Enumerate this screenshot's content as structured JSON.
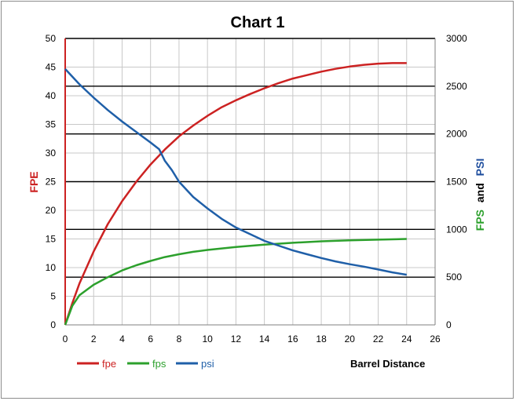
{
  "chart_data": {
    "type": "line",
    "title": "Chart 1",
    "xlabel": "Barrel Distance",
    "ylabel_left": "FPE",
    "ylabel_right_parts": [
      {
        "text": "FPS",
        "color": "#2ca02c"
      },
      {
        "text": "and",
        "color": "#000000"
      },
      {
        "text": "PSI",
        "color": "#1f4e9e"
      }
    ],
    "xlim": [
      0,
      26
    ],
    "ylim_left": [
      0,
      50
    ],
    "ylim_right": [
      0,
      3000
    ],
    "x_ticks": [
      "0",
      "2",
      "4",
      "6",
      "8",
      "10",
      "12",
      "14",
      "16",
      "18",
      "20",
      "22",
      "24",
      "26"
    ],
    "y_left_ticks": [
      "0",
      "5",
      "10",
      "15",
      "20",
      "25",
      "30",
      "35",
      "40",
      "45",
      "50"
    ],
    "y_right_ticks": [
      "0",
      "500",
      "1000",
      "1500",
      "2000",
      "2500",
      "3000"
    ],
    "grid": true,
    "legend_placement": "bottom-left",
    "series": [
      {
        "name": "fpe",
        "axis": "left",
        "color": "#cc2222",
        "x": [
          0,
          0.5,
          1,
          2,
          3,
          4,
          5,
          6,
          7,
          8,
          9,
          10,
          11,
          12,
          13,
          14,
          15,
          16,
          17,
          18,
          19,
          20,
          21,
          22,
          23,
          24
        ],
        "y": [
          0,
          3.8,
          7.2,
          12.8,
          17.6,
          21.6,
          25.0,
          28.0,
          30.6,
          32.9,
          34.8,
          36.5,
          38.0,
          39.2,
          40.3,
          41.3,
          42.2,
          43.0,
          43.6,
          44.2,
          44.7,
          45.1,
          45.4,
          45.6,
          45.7,
          45.7
        ]
      },
      {
        "name": "fps",
        "axis": "right",
        "color": "#2ca02c",
        "x": [
          0,
          0.5,
          1,
          2,
          3,
          4,
          5,
          6,
          7,
          8,
          9,
          10,
          12,
          14,
          16,
          18,
          20,
          22,
          24
        ],
        "y": [
          0,
          200,
          310,
          420,
          500,
          570,
          625,
          670,
          710,
          740,
          765,
          785,
          815,
          840,
          860,
          875,
          885,
          893,
          900
        ]
      },
      {
        "name": "psi",
        "axis": "right",
        "color": "#1f5fa8",
        "x": [
          0,
          1,
          2,
          3,
          4,
          5,
          6,
          6.6,
          7,
          7.5,
          8,
          9,
          10,
          11,
          12,
          13,
          14,
          15,
          16,
          17,
          18,
          19,
          20,
          21,
          22,
          23,
          24
        ],
        "y": [
          2680,
          2520,
          2380,
          2250,
          2130,
          2020,
          1910,
          1840,
          1720,
          1620,
          1500,
          1340,
          1220,
          1110,
          1020,
          950,
          880,
          830,
          780,
          740,
          700,
          665,
          635,
          610,
          580,
          550,
          525
        ]
      }
    ]
  }
}
